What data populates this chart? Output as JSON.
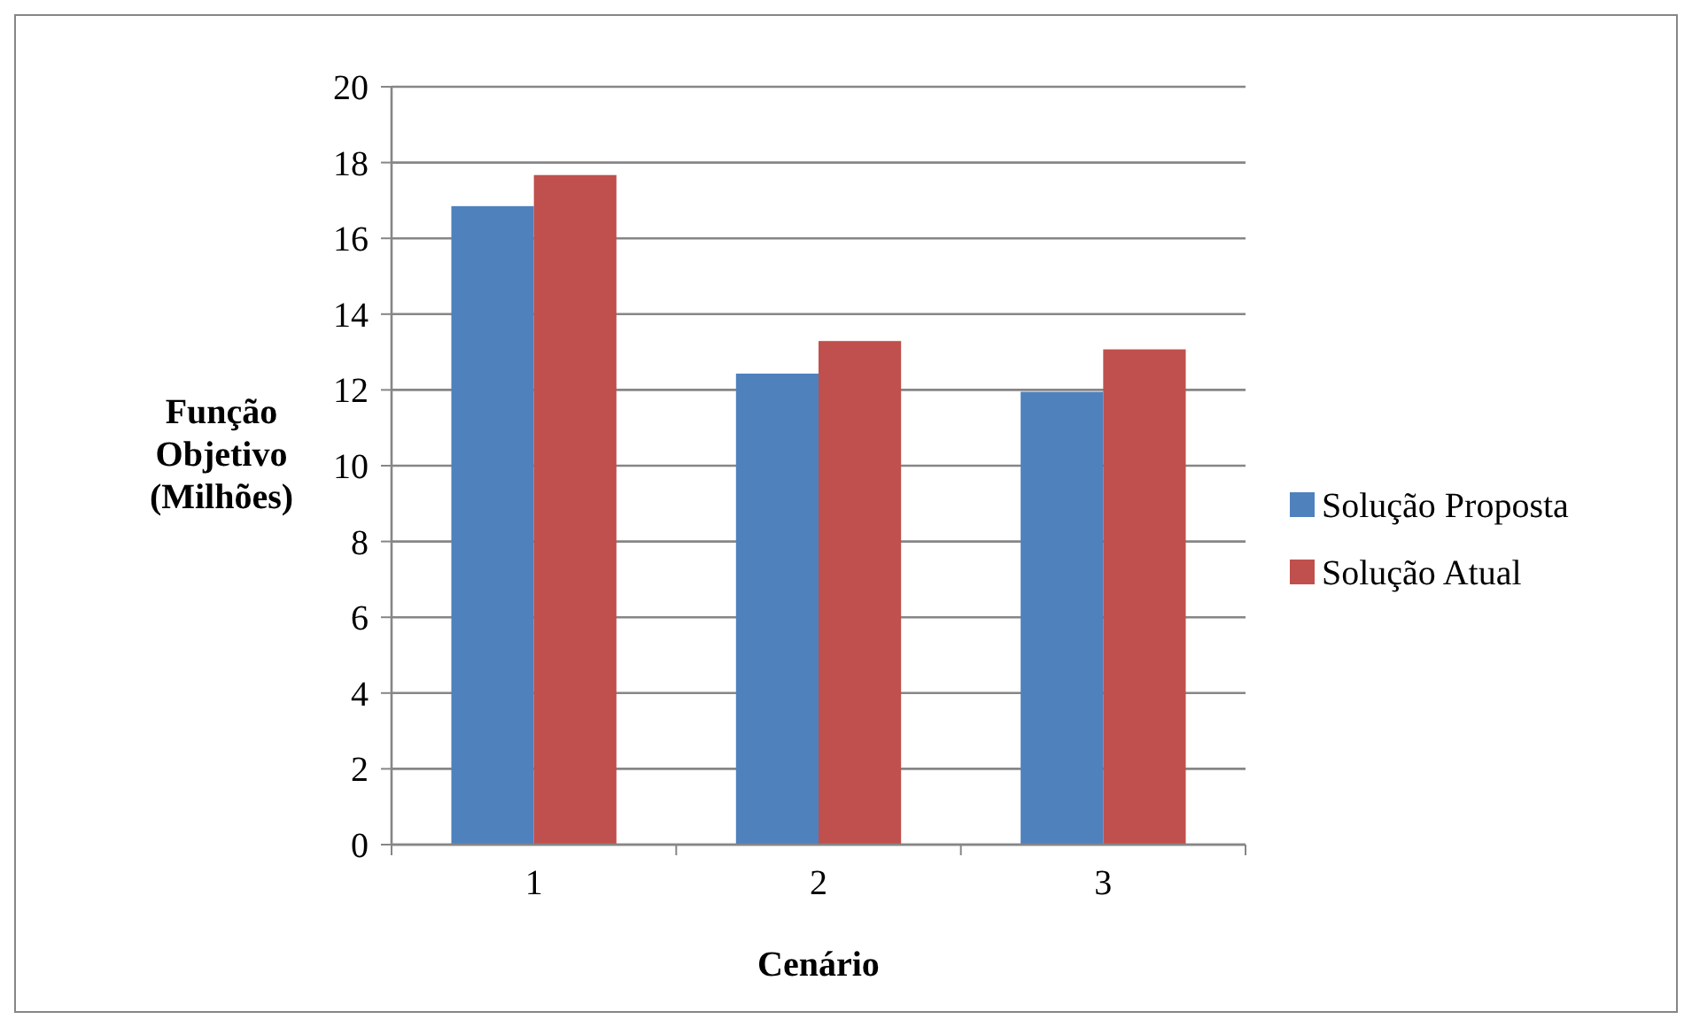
{
  "chart_data": {
    "type": "bar",
    "xlabel": "Cenário",
    "ylabel": "Função Objetivo (Milhões)",
    "categories": [
      "1",
      "2",
      "3"
    ],
    "series": [
      {
        "name": "Solução Proposta",
        "color": "#4f81bd",
        "values": [
          16.85,
          12.43,
          11.95
        ]
      },
      {
        "name": "Solução Atual",
        "color": "#c0504d",
        "values": [
          17.67,
          13.29,
          13.07
        ]
      }
    ],
    "ylim": [
      0,
      20
    ],
    "yticks": [
      0,
      2,
      4,
      6,
      8,
      10,
      12,
      14,
      16,
      18,
      20
    ],
    "grid": "y",
    "legend": "right"
  }
}
